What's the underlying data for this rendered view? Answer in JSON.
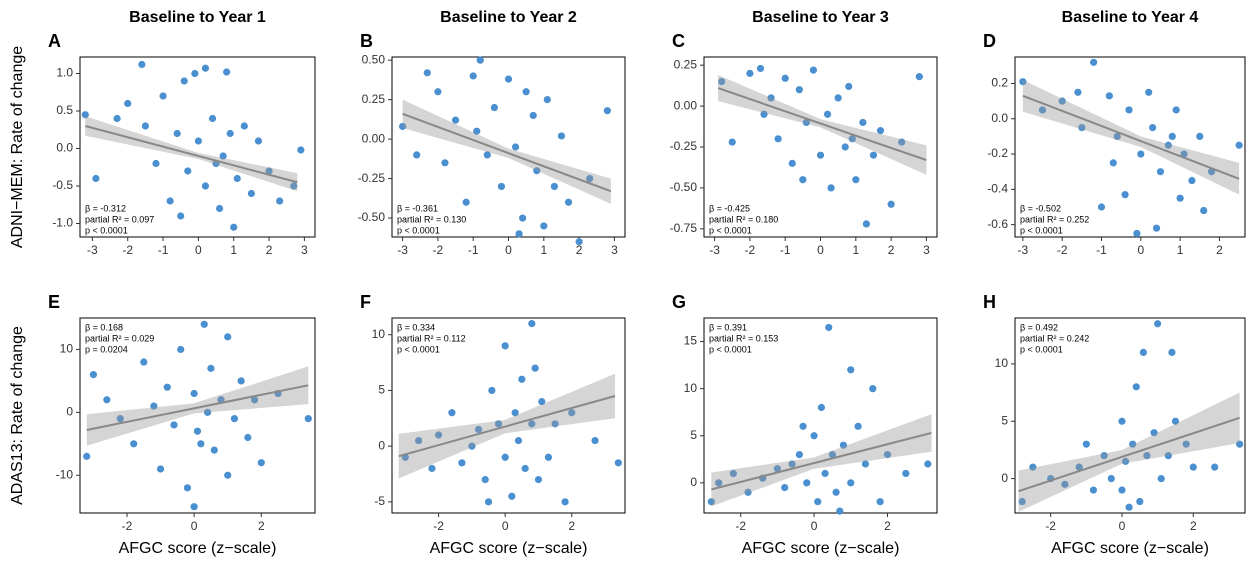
{
  "chart_data": [
    {
      "type": "scatter",
      "title": "Baseline to Year 1",
      "panel": "A",
      "ylabel": "ADNI−MEM: Rate of change",
      "color": "#4a90d0",
      "x": [
        -3.2,
        -2.9,
        -2.3,
        -2,
        -1.6,
        -1.5,
        -1.2,
        -1,
        -0.8,
        -0.6,
        -0.4,
        -0.3,
        -0.1,
        0,
        0.2,
        0.2,
        0.4,
        0.5,
        0.6,
        0.8,
        0.9,
        1,
        1.1,
        1.3,
        1.5,
        1.7,
        2,
        2.3,
        2.7,
        2.9,
        -0.5,
        0.7
      ],
      "values": [
        0.45,
        -0.4,
        0.4,
        0.6,
        1.12,
        0.3,
        -0.2,
        0.7,
        -0.7,
        0.2,
        0.9,
        -0.3,
        1.0,
        0.1,
        1.07,
        -0.5,
        0.4,
        -0.2,
        -0.8,
        1.02,
        0.2,
        -1.05,
        -0.4,
        0.3,
        -0.6,
        0.1,
        -0.3,
        -0.7,
        -0.5,
        -0.02,
        -0.9,
        -0.1
      ],
      "fit": {
        "x": [
          -3.2,
          2.8
        ],
        "y": [
          0.3,
          -0.45
        ]
      },
      "band": {
        "x": [
          -3.2,
          0,
          2.8
        ],
        "lower": [
          0.17,
          -0.14,
          -0.57
        ],
        "upper": [
          0.43,
          -0.06,
          -0.33
        ]
      },
      "annotations": [
        "β = -0.312",
        "partial R² = 0.097",
        "p < 0.0001"
      ],
      "xlim": [
        -3.35,
        3.3
      ],
      "ylim": [
        -1.18,
        1.22
      ],
      "xticks": [
        -3,
        -2,
        -1,
        0,
        1,
        2,
        3
      ],
      "yticks": [
        {
          "value": 1,
          "label": "1.0"
        },
        0.5,
        {
          "value": 0,
          "label": "0.0"
        },
        -0.5,
        {
          "value": -1,
          "label": "-1.0"
        }
      ]
    },
    {
      "type": "scatter",
      "title": "Baseline to Year 2",
      "panel": "B",
      "color": "#4a90d0",
      "x": [
        -3,
        -2.6,
        -2.3,
        -2,
        -1.5,
        -1.2,
        -1,
        -0.8,
        -0.6,
        -0.4,
        -0.2,
        0,
        0.2,
        0.4,
        0.5,
        0.7,
        0.8,
        1,
        1.1,
        1.3,
        1.5,
        1.7,
        2,
        2.3,
        2.8,
        -1.8,
        0.3,
        -0.9
      ],
      "values": [
        0.08,
        -0.1,
        0.42,
        0.3,
        0.12,
        -0.4,
        0.4,
        0.5,
        -0.1,
        0.2,
        -0.3,
        0.38,
        -0.05,
        -0.5,
        0.3,
        0.15,
        -0.2,
        -0.55,
        0.25,
        -0.3,
        0.02,
        -0.4,
        -0.65,
        -0.25,
        0.18,
        -0.15,
        -0.6,
        0.05
      ],
      "fit": {
        "x": [
          -3,
          2.9
        ],
        "y": [
          0.16,
          -0.33
        ]
      },
      "band": {
        "x": [
          -3,
          0,
          2.9
        ],
        "lower": [
          0.07,
          -0.12,
          -0.41
        ],
        "upper": [
          0.25,
          -0.06,
          -0.25
        ]
      },
      "annotations": [
        "β = -0.361",
        "partial R² = 0.130",
        "p < 0.0001"
      ],
      "xlim": [
        -3.3,
        3.3
      ],
      "ylim": [
        -0.62,
        0.52
      ],
      "xticks": [
        -3,
        -2,
        -1,
        0,
        1,
        2,
        3
      ],
      "yticks": [
        {
          "value": 0.5,
          "label": "0.50"
        },
        0.25,
        {
          "value": 0,
          "label": "0.00"
        },
        -0.25,
        {
          "value": -0.5,
          "label": "-0.50"
        }
      ]
    },
    {
      "type": "scatter",
      "title": "Baseline to Year 3",
      "panel": "C",
      "color": "#4a90d0",
      "x": [
        -2.8,
        -2.5,
        -2,
        -1.7,
        -1.4,
        -1.2,
        -1,
        -0.8,
        -0.6,
        -0.4,
        -0.2,
        0,
        0.2,
        0.3,
        0.5,
        0.7,
        0.8,
        1,
        1.2,
        1.3,
        1.5,
        1.7,
        2,
        2.3,
        2.8,
        -0.5,
        0.9,
        -1.6
      ],
      "values": [
        0.15,
        -0.22,
        0.2,
        0.23,
        0.05,
        -0.2,
        0.17,
        -0.35,
        0.1,
        -0.1,
        0.22,
        -0.3,
        -0.05,
        -0.5,
        0.05,
        -0.25,
        0.12,
        -0.45,
        -0.1,
        -0.72,
        -0.3,
        -0.15,
        -0.6,
        -0.22,
        0.18,
        -0.45,
        -0.2,
        -0.05
      ],
      "fit": {
        "x": [
          -2.9,
          3
        ],
        "y": [
          0.11,
          -0.33
        ]
      },
      "band": {
        "x": [
          -2.9,
          0,
          3
        ],
        "lower": [
          0.03,
          -0.13,
          -0.42
        ],
        "upper": [
          0.19,
          -0.08,
          -0.24
        ]
      },
      "annotations": [
        "β = -0.425",
        "partial R² = 0.180",
        "p < 0.0001"
      ],
      "xlim": [
        -3.3,
        3.3
      ],
      "ylim": [
        -0.8,
        0.3
      ],
      "xticks": [
        -3,
        -2,
        -1,
        0,
        1,
        2,
        3
      ],
      "yticks": [
        0.25,
        {
          "value": 0,
          "label": "0.00"
        },
        -0.25,
        {
          "value": -0.5,
          "label": "-0.50"
        },
        -0.75
      ]
    },
    {
      "type": "scatter",
      "title": "Baseline to Year 4",
      "panel": "D",
      "color": "#4a90d0",
      "x": [
        -3,
        -2.5,
        -2,
        -1.6,
        -1.5,
        -1.2,
        -1,
        -0.8,
        -0.6,
        -0.4,
        -0.3,
        -0.1,
        0,
        0.2,
        0.3,
        0.4,
        0.5,
        0.7,
        0.9,
        1,
        1.1,
        1.3,
        1.5,
        1.6,
        1.8,
        2.5,
        -0.7,
        0.8
      ],
      "values": [
        0.21,
        0.05,
        0.1,
        0.15,
        -0.05,
        0.32,
        -0.5,
        0.13,
        -0.1,
        -0.43,
        0.05,
        -0.65,
        -0.2,
        0.15,
        -0.05,
        -0.62,
        -0.3,
        -0.15,
        0.05,
        -0.45,
        -0.2,
        -0.35,
        -0.1,
        -0.52,
        -0.3,
        -0.15,
        -0.25,
        -0.1
      ],
      "fit": {
        "x": [
          -3,
          2.5
        ],
        "y": [
          0.13,
          -0.34
        ]
      },
      "band": {
        "x": [
          -3,
          0,
          2.5
        ],
        "lower": [
          0.04,
          -0.16,
          -0.43
        ],
        "upper": [
          0.22,
          -0.1,
          -0.25
        ]
      },
      "annotations": [
        "β = -0.502",
        "partial R² = 0.252",
        "p < 0.0001"
      ],
      "xlim": [
        -3.2,
        2.65
      ],
      "ylim": [
        -0.67,
        0.35
      ],
      "xticks": [
        -3,
        -2,
        -1,
        0,
        1,
        2
      ],
      "yticks": [
        0.2,
        {
          "value": 0,
          "label": "0.0"
        },
        -0.2,
        -0.4,
        -0.6
      ]
    },
    {
      "type": "scatter",
      "panel": "E",
      "ylabel": "ADAS13: Rate of change",
      "xlabel": "AFGC score (z−scale)",
      "color": "#4a90d0",
      "x": [
        -3.2,
        -3,
        -2.6,
        -2.2,
        -1.8,
        -1.5,
        -1.2,
        -1,
        -0.8,
        -0.6,
        -0.4,
        -0.2,
        0,
        0,
        0.1,
        0.3,
        0.4,
        0.5,
        0.6,
        0.8,
        1,
        1,
        1.2,
        1.4,
        1.6,
        1.8,
        2,
        2.5,
        3.4,
        0.2
      ],
      "values": [
        -7,
        6,
        2,
        -1,
        -5,
        8,
        1,
        -9,
        4,
        -2,
        10,
        -12,
        3,
        -15,
        -3,
        14,
        0,
        7,
        -6,
        2,
        12,
        -10,
        -1,
        5,
        -4,
        2,
        -8,
        3,
        -1,
        -5
      ],
      "fit": {
        "x": [
          -3.2,
          3.4
        ],
        "y": [
          -2.8,
          4.3
        ]
      },
      "band": {
        "x": [
          -3.2,
          0,
          3.4
        ],
        "lower": [
          -5.3,
          -0.16,
          1.3
        ],
        "upper": [
          -0.3,
          1.44,
          7.3
        ]
      },
      "annotations": [
        "β = 0.168",
        "partial R² = 0.029",
        "p = 0.0204"
      ],
      "xlim": [
        -3.4,
        3.6
      ],
      "ylim": [
        -16,
        15
      ],
      "xticks": [
        -2,
        0,
        2
      ],
      "yticks": [
        10,
        0,
        -10
      ]
    },
    {
      "type": "scatter",
      "panel": "F",
      "xlabel": "AFGC score (z−scale)",
      "color": "#4a90d0",
      "x": [
        -3,
        -2.6,
        -2.2,
        -2,
        -1.6,
        -1.3,
        -1,
        -0.8,
        -0.6,
        -0.4,
        -0.2,
        0,
        0,
        0.2,
        0.3,
        0.4,
        0.5,
        0.6,
        0.8,
        0.8,
        1,
        1.1,
        1.3,
        1.5,
        1.8,
        2,
        2.7,
        3.4,
        -0.5,
        0.9
      ],
      "values": [
        -1,
        0.5,
        -2,
        1,
        3,
        -1.5,
        0,
        1.5,
        -3,
        5,
        2,
        -1,
        9,
        -4.5,
        3,
        0.5,
        6,
        -2,
        11,
        2,
        -3,
        4,
        -1,
        2,
        -5,
        3,
        0.5,
        -1.5,
        -5,
        7
      ],
      "fit": {
        "x": [
          -3.2,
          3.3
        ],
        "y": [
          -0.9,
          4.5
        ]
      },
      "band": {
        "x": [
          -3.2,
          0,
          3.3
        ],
        "lower": [
          -2.9,
          1.16,
          2.5
        ],
        "upper": [
          1.1,
          2.36,
          6.5
        ]
      },
      "annotations": [
        "β = 0.334",
        "partial R² = 0.112",
        "p < 0.0001"
      ],
      "xlim": [
        -3.4,
        3.6
      ],
      "ylim": [
        -6,
        11.5
      ],
      "xticks": [
        -2,
        0,
        2
      ],
      "yticks": [
        10,
        5,
        0,
        -5
      ]
    },
    {
      "type": "scatter",
      "panel": "G",
      "xlabel": "AFGC score (z−scale)",
      "color": "#4a90d0",
      "x": [
        -2.8,
        -2.6,
        -2.2,
        -1.8,
        -1.4,
        -1,
        -0.8,
        -0.6,
        -0.4,
        -0.2,
        0,
        0.1,
        0.2,
        0.3,
        0.4,
        0.5,
        0.6,
        0.8,
        1,
        1,
        1.2,
        1.4,
        1.6,
        1.8,
        2,
        2.5,
        3.1,
        -0.3,
        0.7
      ],
      "values": [
        -2,
        0,
        1,
        -1,
        0.5,
        1.5,
        -0.5,
        2,
        3,
        0,
        5,
        -2,
        8,
        1,
        16.5,
        3,
        -1,
        4,
        12,
        0,
        6,
        2,
        10,
        -2,
        3,
        1,
        2,
        6,
        -3
      ],
      "fit": {
        "x": [
          -2.8,
          3.2
        ],
        "y": [
          -0.7,
          5.3
        ]
      },
      "band": {
        "x": [
          -2.8,
          0,
          3.2
        ],
        "lower": [
          -2.5,
          1.5,
          3.3
        ],
        "upper": [
          1.1,
          2.7,
          7.3
        ]
      },
      "annotations": [
        "β = 0.391",
        "partial R² = 0.153",
        "p < 0.0001"
      ],
      "xlim": [
        -3,
        3.35
      ],
      "ylim": [
        -3.2,
        17.5
      ],
      "xticks": [
        -2,
        0,
        2
      ],
      "yticks": [
        15,
        10,
        5,
        0
      ]
    },
    {
      "type": "scatter",
      "panel": "H",
      "xlabel": "AFGC score (z−scale)",
      "color": "#4a90d0",
      "x": [
        -2.8,
        -2.5,
        -2,
        -1.6,
        -1.2,
        -1,
        -0.8,
        -0.5,
        -0.3,
        0,
        0,
        0.1,
        0.3,
        0.4,
        0.5,
        0.6,
        0.7,
        0.9,
        1,
        1.1,
        1.3,
        1.4,
        1.5,
        1.8,
        2,
        2.6,
        3.3,
        0.2
      ],
      "values": [
        -2,
        1,
        0,
        -0.5,
        1,
        3,
        -1,
        2,
        0,
        5,
        -1,
        1.5,
        3,
        8,
        -2,
        11,
        2,
        4,
        13.5,
        0,
        2,
        11,
        5,
        3,
        1,
        1,
        3,
        -2.5
      ],
      "fit": {
        "x": [
          -2.9,
          3.3
        ],
        "y": [
          -1.1,
          5.3
        ]
      },
      "band": {
        "x": [
          -2.9,
          0,
          3.3
        ],
        "lower": [
          -2.9,
          1.29,
          3.1
        ],
        "upper": [
          0.7,
          2.49,
          7.5
        ]
      },
      "annotations": [
        "β = 0.492",
        "partial R² = 0.242",
        "p < 0.0001"
      ],
      "xlim": [
        -3,
        3.45
      ],
      "ylim": [
        -3,
        14
      ],
      "xticks": [
        -2,
        0,
        2
      ],
      "yticks": [
        10,
        5,
        0
      ]
    }
  ]
}
